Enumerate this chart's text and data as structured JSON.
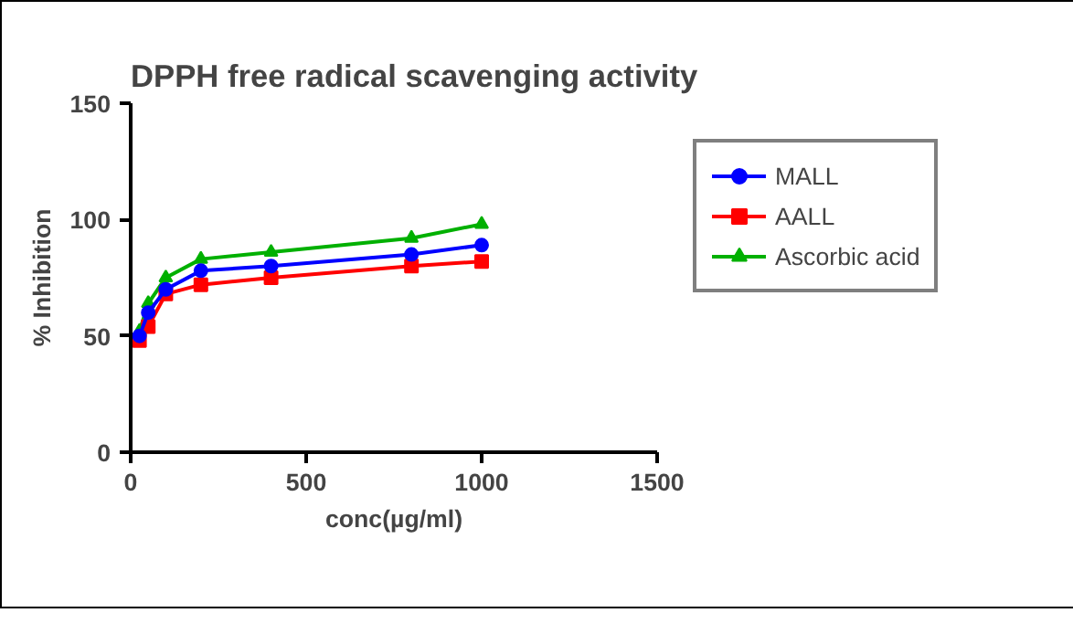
{
  "chart_data": {
    "type": "line",
    "title": "DPPH free radical scavenging activity",
    "xlabel": "conc(µg/ml)",
    "ylabel": "% Inhibition",
    "x": [
      25,
      50,
      100,
      200,
      400,
      800,
      1000
    ],
    "series": [
      {
        "name": "MALL",
        "color": "#0000ff",
        "marker": "circle",
        "values": [
          50,
          60,
          70,
          78,
          80,
          85,
          89
        ]
      },
      {
        "name": "AALL",
        "color": "#ff0000",
        "marker": "square",
        "values": [
          48,
          54,
          68,
          72,
          75,
          80,
          82
        ]
      },
      {
        "name": "Ascorbic acid",
        "color": "#00b000",
        "marker": "triangle",
        "values": [
          52,
          64,
          75,
          83,
          86,
          92,
          98
        ]
      }
    ],
    "xlim": [
      0,
      1500
    ],
    "xticks": [
      0,
      500,
      1000,
      1500
    ],
    "ylim": [
      0,
      150
    ],
    "yticks": [
      0,
      50,
      100,
      150
    ],
    "grid": false,
    "legend": "right",
    "line_style": "solid"
  }
}
